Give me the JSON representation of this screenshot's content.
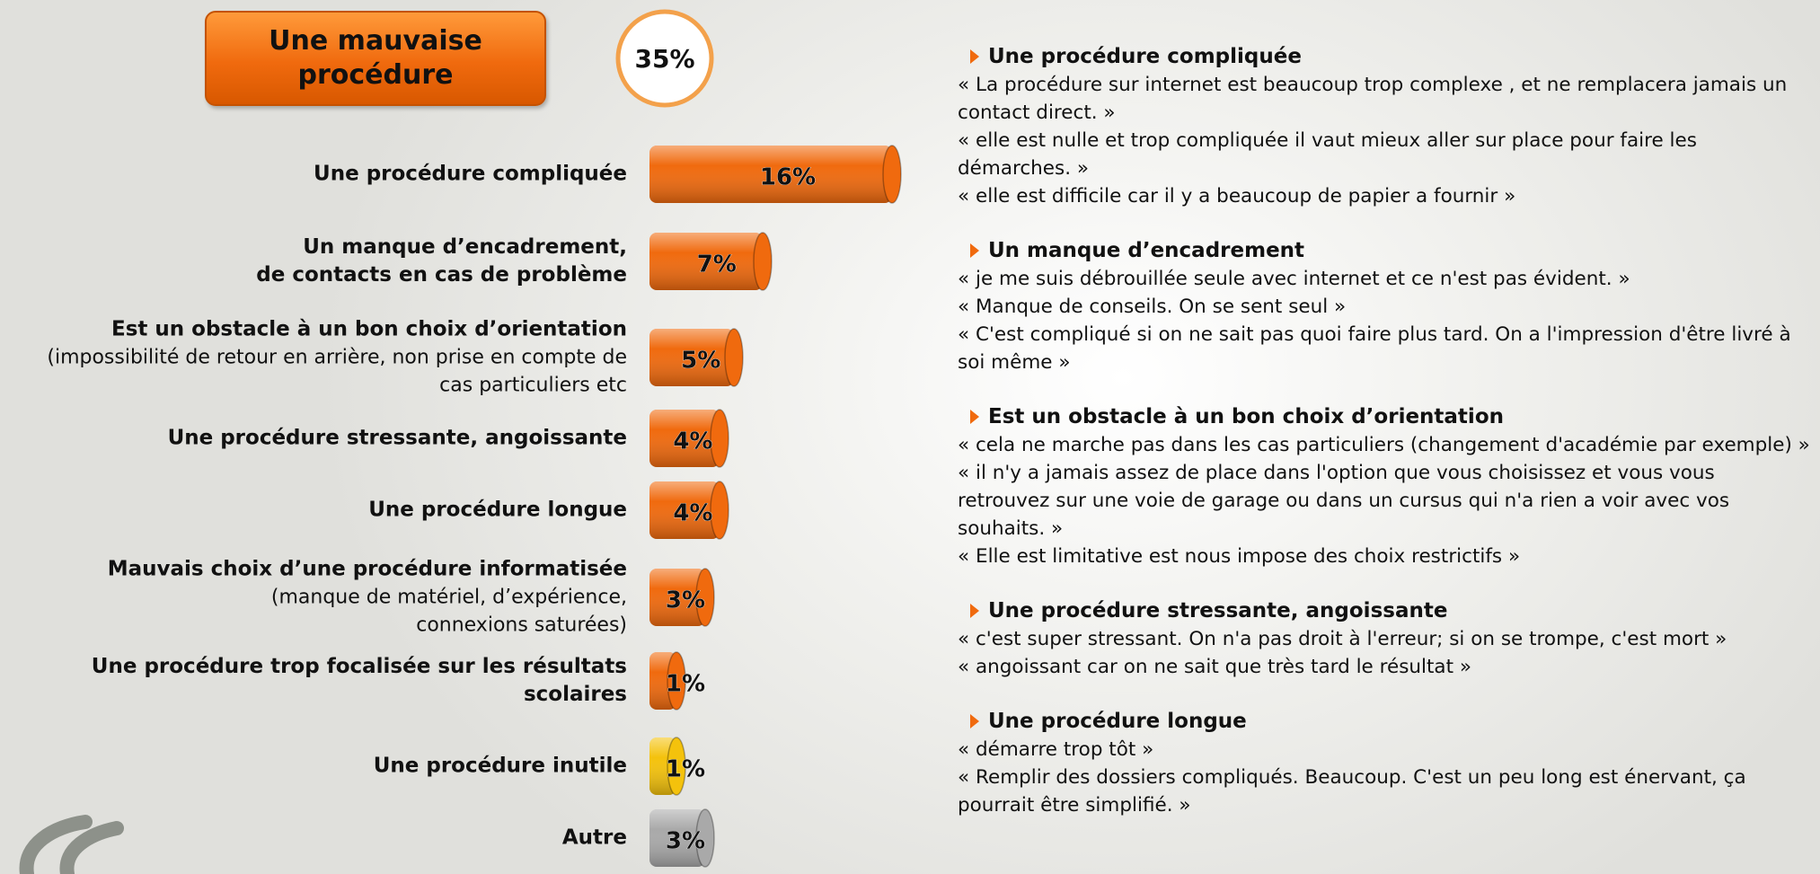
{
  "chart_data": {
    "type": "bar",
    "header": "Une mauvaise\nprocédure",
    "total": 35,
    "total_label": "35%",
    "categories": [
      "Une procédure compliquée",
      "Un manque d’encadrement,\nde contacts en cas de problème",
      "Est un obstacle à un bon choix d’orientation",
      "Une procédure stressante, angoissante",
      "Une procédure longue",
      "Mauvais choix d’une procédure informatisée",
      "Une procédure trop  focalisée sur les résultats\nscolaires",
      "Une procédure inutile",
      "Autre"
    ],
    "notes": [
      null,
      null,
      "(impossibilité de retour en arrière, non prise en compte de\ncas particuliers etc",
      null,
      null,
      "(manque de matériel, d’expérience,\nconnexions saturées)",
      null,
      null,
      null
    ],
    "values": [
      16,
      7,
      5,
      4,
      4,
      3,
      1,
      1,
      3
    ],
    "value_labels": [
      "16%",
      "7%",
      "5%",
      "4%",
      "4%",
      "3%",
      "1%",
      "1%",
      "3%"
    ],
    "colors": [
      "#f06a0e",
      "#f06a0e",
      "#f06a0e",
      "#f06a0e",
      "#f06a0e",
      "#f06a0e",
      "#f06a0e",
      "#f4c20c",
      "#a9a9a9"
    ],
    "comments": [
      {
        "title": "Une procédure compliquée",
        "quotes": [
          "«  La procédure sur internet est beaucoup trop complexe , et ne remplacera jamais un contact direct. »",
          "«  elle est nulle et trop compliquée il vaut mieux aller sur place pour faire les démarches. »",
          "«  elle est difficile car il y a beaucoup de papier a fournir »"
        ]
      },
      {
        "title": "Un manque d’encadrement",
        "quotes": [
          "« je me suis débrouillée seule avec internet et ce n'est pas évident. »",
          "« Manque de conseils. On se sent seul »",
          "« C'est compliqué si on ne sait pas quoi faire plus tard. On a l'impression d'être livré à soi même »"
        ]
      },
      {
        "title": "Est un obstacle à un bon choix d’orientation",
        "quotes": [
          "«  cela ne marche pas dans les cas particuliers (changement d'académie par exemple) »",
          "« il n'y a jamais assez de place dans l'option que vous choisissez et vous vous retrouvez sur une voie de garage ou dans un cursus qui n'a rien a voir avec vos souhaits. »",
          "«  Elle est limitative est nous impose des choix restrictifs »"
        ]
      },
      {
        "title": "Une procédure stressante, angoissante",
        "quotes": [
          "« c'est super stressant. On n'a pas droit à l'erreur; si on se trompe, c'est mort »",
          "« angoissant car on ne sait que très tard le résultat »"
        ]
      },
      {
        "title": "Une procédure longue",
        "quotes": [
          "« démarre trop tôt »",
          "« Remplir des dossiers compliqués. Beaucoup. C'est un peu long est énervant, ça pourrait être simplifié. »"
        ]
      }
    ]
  }
}
